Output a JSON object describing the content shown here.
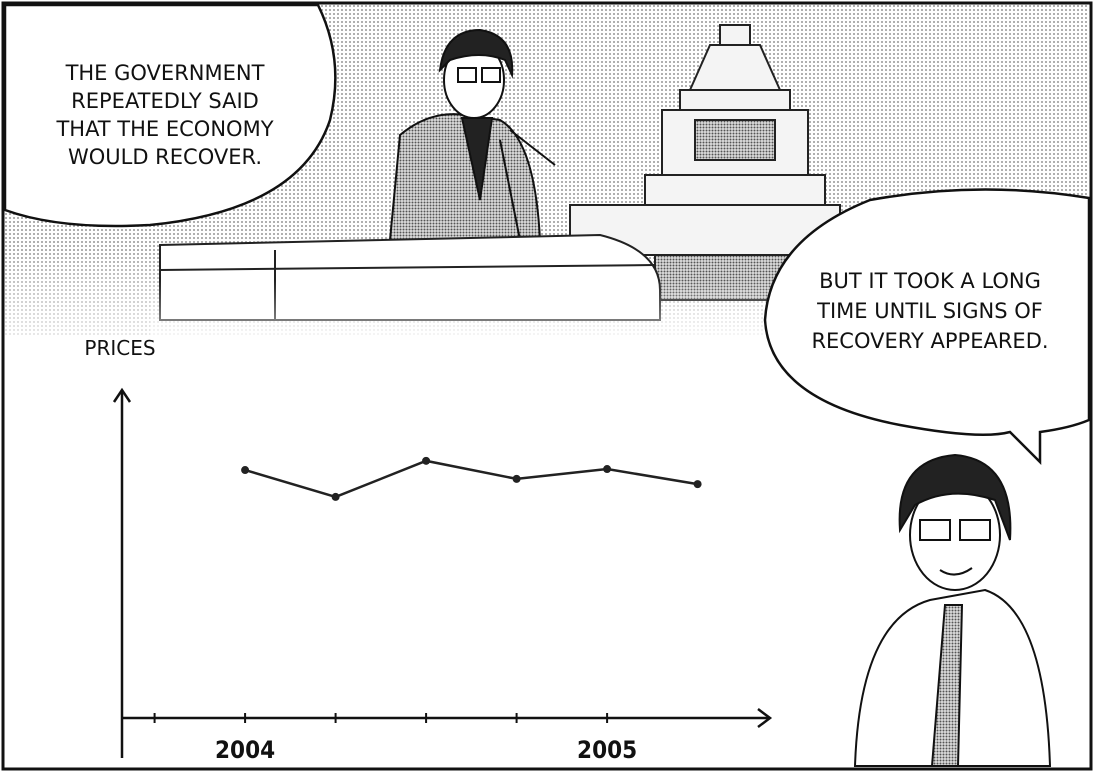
{
  "bubbles": [
    {
      "lines": [
        "THE GOVERNMENT",
        "REPEATEDLY SAID",
        "THAT THE ECONOMY",
        "WOULD RECOVER."
      ]
    },
    {
      "lines": [
        "BUT IT TOOK A LONG",
        "TIME UNTIL SIGNS OF",
        "RECOVERY APPEARED."
      ]
    }
  ],
  "chart_data": {
    "type": "line",
    "y_label": "PRICES",
    "x": [
      2004,
      2004.25,
      2004.5,
      2004.75,
      2005,
      2005.25
    ],
    "values": [
      75.6,
      67.4,
      78.4,
      72.9,
      75.9,
      71.3
    ],
    "color": "#222",
    "xlim": [
      2003.66,
      2005.45
    ],
    "ylim": [
      0,
      100
    ],
    "xticks": [
      2004,
      2005
    ],
    "xminorticks": [
      2003.75,
      2004.25,
      2004.5,
      2004.75
    ]
  }
}
